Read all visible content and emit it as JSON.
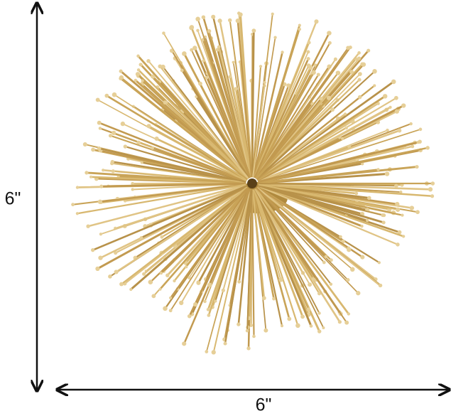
{
  "dimensions": {
    "height": "6\"",
    "width": "6\""
  }
}
